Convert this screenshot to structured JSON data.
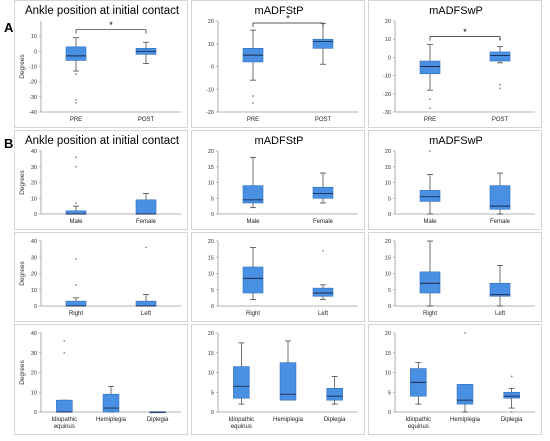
{
  "figure": {
    "section_labels": [
      "A",
      "B"
    ],
    "colors": {
      "box_fill": "#4a90e2",
      "box_stroke": "#2f6fbf",
      "median": "#1c2a4a",
      "whisker": "#333333",
      "outlier": "#8a8a8a",
      "axis": "#9a9a9a",
      "frame": "#d4d4d4"
    }
  },
  "chart_data": [
    {
      "type": "box",
      "id": "a1",
      "title": "Ankle position at initial contact",
      "ylabel": "Degrees",
      "ylim": [
        -40,
        20
      ],
      "yticks": [
        -40,
        -30,
        -20,
        -10,
        0,
        10
      ],
      "categories": [
        "PRE",
        "POST"
      ],
      "boxes": [
        {
          "min": -13,
          "q1": -6,
          "median": -3,
          "q3": 3,
          "max": 9,
          "outliers": [
            -15,
            -32,
            -34
          ]
        },
        {
          "min": -8,
          "q1": -2,
          "median": 0,
          "q3": 2,
          "max": 6,
          "outliers": []
        }
      ],
      "significance": {
        "pair": [
          0,
          1
        ],
        "label": "*"
      }
    },
    {
      "type": "box",
      "id": "a2",
      "title": "mADFStP",
      "ylabel": "",
      "ylim": [
        -20,
        20
      ],
      "yticks": [
        -20,
        -10,
        0,
        10,
        20
      ],
      "categories": [
        "PRE",
        "POST"
      ],
      "boxes": [
        {
          "min": -6,
          "q1": 2,
          "median": 5,
          "q3": 8,
          "max": 16,
          "outliers": [
            -13,
            -16
          ]
        },
        {
          "min": 1,
          "q1": 8,
          "median": 11,
          "q3": 12,
          "max": 19,
          "outliers": []
        }
      ],
      "significance": {
        "pair": [
          0,
          1
        ],
        "label": "*"
      }
    },
    {
      "type": "box",
      "id": "a3",
      "title": "mADFSwP",
      "ylabel": "",
      "ylim": [
        -30,
        20
      ],
      "yticks": [
        -30,
        -20,
        -10,
        0,
        10,
        20
      ],
      "categories": [
        "PRE",
        "POST"
      ],
      "boxes": [
        {
          "min": -18,
          "q1": -9,
          "median": -5,
          "q3": -2,
          "max": 7,
          "outliers": [
            -23,
            -28
          ]
        },
        {
          "min": -3,
          "q1": -2,
          "median": 1,
          "q3": 3,
          "max": 6,
          "outliers": [
            -15,
            -17,
            10
          ]
        }
      ],
      "significance": {
        "pair": [
          0,
          1
        ],
        "label": "*"
      }
    },
    {
      "type": "box",
      "id": "b11",
      "title": "Ankle position at initial contact",
      "ylabel": "Degrees",
      "ylim": [
        0,
        40
      ],
      "yticks": [
        0,
        10,
        20,
        30,
        40
      ],
      "categories": [
        "Male",
        "Female"
      ],
      "boxes": [
        {
          "min": 0,
          "q1": 0,
          "median": 0,
          "q3": 2,
          "max": 5,
          "outliers": [
            7,
            30,
            36
          ]
        },
        {
          "min": 0,
          "q1": 0,
          "median": 0,
          "q3": 9,
          "max": 13,
          "outliers": []
        }
      ]
    },
    {
      "type": "box",
      "id": "b12",
      "title": "mADFStP",
      "ylabel": "",
      "ylim": [
        0,
        20
      ],
      "yticks": [
        0,
        5,
        10,
        15,
        20
      ],
      "categories": [
        "Male",
        "Female"
      ],
      "boxes": [
        {
          "min": 2,
          "q1": 3.5,
          "median": 4.5,
          "q3": 9,
          "max": 18,
          "outliers": []
        },
        {
          "min": 3.5,
          "q1": 5,
          "median": 6.5,
          "q3": 8.5,
          "max": 13,
          "outliers": []
        }
      ]
    },
    {
      "type": "box",
      "id": "b13",
      "title": "mADFSwP",
      "ylabel": "",
      "ylim": [
        0,
        20
      ],
      "yticks": [
        0,
        5,
        10,
        15,
        20
      ],
      "categories": [
        "Male",
        "Female"
      ],
      "boxes": [
        {
          "min": 0,
          "q1": 4,
          "median": 5.5,
          "q3": 7.5,
          "max": 12.5,
          "outliers": [
            20
          ]
        },
        {
          "min": 0,
          "q1": 1.5,
          "median": 2.5,
          "q3": 9,
          "max": 13,
          "outliers": []
        }
      ]
    },
    {
      "type": "box",
      "id": "b21",
      "title": "",
      "ylabel": "Degrees",
      "ylim": [
        0,
        40
      ],
      "yticks": [
        0,
        10,
        20,
        30,
        40
      ],
      "categories": [
        "Right",
        "Left"
      ],
      "boxes": [
        {
          "min": 0,
          "q1": 0,
          "median": 0,
          "q3": 3,
          "max": 5,
          "outliers": [
            13,
            29
          ]
        },
        {
          "min": 0,
          "q1": 0,
          "median": 0,
          "q3": 3,
          "max": 7,
          "outliers": [
            36
          ]
        }
      ]
    },
    {
      "type": "box",
      "id": "b22",
      "title": "",
      "ylabel": "",
      "ylim": [
        0,
        20
      ],
      "yticks": [
        0,
        5,
        10,
        15,
        20
      ],
      "categories": [
        "Right",
        "Left"
      ],
      "boxes": [
        {
          "min": 2,
          "q1": 4,
          "median": 8.5,
          "q3": 12,
          "max": 18,
          "outliers": []
        },
        {
          "min": 2,
          "q1": 3,
          "median": 4,
          "q3": 5.5,
          "max": 6.5,
          "outliers": [
            17
          ]
        }
      ]
    },
    {
      "type": "box",
      "id": "b23",
      "title": "",
      "ylabel": "",
      "ylim": [
        0,
        20
      ],
      "yticks": [
        0,
        5,
        10,
        15,
        20
      ],
      "categories": [
        "Right",
        "Left"
      ],
      "boxes": [
        {
          "min": 0,
          "q1": 4,
          "median": 7,
          "q3": 10.5,
          "max": 20,
          "outliers": []
        },
        {
          "min": 0,
          "q1": 3,
          "median": 3.5,
          "q3": 7,
          "max": 12.5,
          "outliers": []
        }
      ]
    },
    {
      "type": "box",
      "id": "b31",
      "title": "",
      "ylabel": "Degrees",
      "ylim": [
        0,
        40
      ],
      "yticks": [
        0,
        10,
        20,
        30,
        40
      ],
      "categories": [
        "Idiopathic equinus",
        "Hemiplegia",
        "Diplegia"
      ],
      "boxes": [
        {
          "min": 0,
          "q1": 0,
          "median": 0,
          "q3": 6,
          "max": 6,
          "outliers": [
            30,
            36
          ]
        },
        {
          "min": 0,
          "q1": 0,
          "median": 2,
          "q3": 9,
          "max": 13,
          "outliers": []
        },
        {
          "min": 0,
          "q1": 0,
          "median": 0,
          "q3": 0,
          "max": 0,
          "outliers": []
        }
      ]
    },
    {
      "type": "box",
      "id": "b32",
      "title": "",
      "ylabel": "",
      "ylim": [
        0,
        20
      ],
      "yticks": [
        0,
        5,
        10,
        15,
        20
      ],
      "categories": [
        "Idiopathic equinus",
        "Hemiplegia",
        "Diplegia"
      ],
      "boxes": [
        {
          "min": 2,
          "q1": 3.5,
          "median": 6.5,
          "q3": 11.5,
          "max": 17.5,
          "outliers": []
        },
        {
          "min": 3,
          "q1": 3,
          "median": 4.5,
          "q3": 12.5,
          "max": 18,
          "outliers": []
        },
        {
          "min": 2,
          "q1": 3,
          "median": 4,
          "q3": 6,
          "max": 9,
          "outliers": []
        }
      ]
    },
    {
      "type": "box",
      "id": "b33",
      "title": "",
      "ylabel": "",
      "ylim": [
        0,
        20
      ],
      "yticks": [
        0,
        5,
        10,
        15,
        20
      ],
      "categories": [
        "Idiopathic equinus",
        "Hemiplegia",
        "Diplegia"
      ],
      "boxes": [
        {
          "min": 2,
          "q1": 4,
          "median": 7.5,
          "q3": 11,
          "max": 12.5,
          "outliers": []
        },
        {
          "min": 0,
          "q1": 2,
          "median": 3,
          "q3": 7,
          "max": 7,
          "outliers": [
            20
          ]
        },
        {
          "min": 1,
          "q1": 3.5,
          "median": 4,
          "q3": 5,
          "max": 6,
          "outliers": [
            0,
            9
          ]
        }
      ]
    }
  ]
}
